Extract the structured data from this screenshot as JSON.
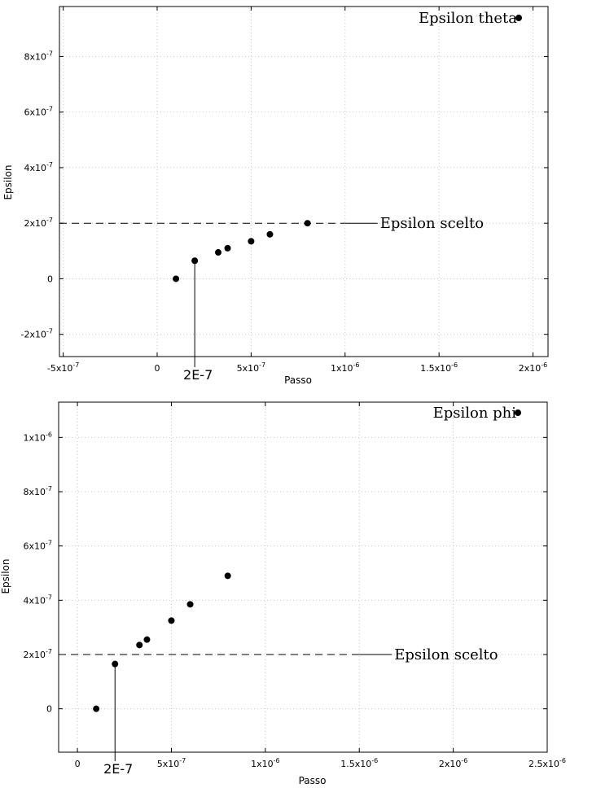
{
  "chart_data": [
    {
      "type": "scatter",
      "xlabel": "Passo",
      "ylabel": "Epsilon",
      "xlim": [
        -5.2e-07,
        2.08e-06
      ],
      "ylim": [
        -2.8e-07,
        9.8e-07
      ],
      "x_ticks": [
        {
          "v": -5e-07,
          "label": "-5x10",
          "exp": "-7"
        },
        {
          "v": 0,
          "label": "0",
          "exp": ""
        },
        {
          "v": 5e-07,
          "label": "5x10",
          "exp": "-7"
        },
        {
          "v": 1e-06,
          "label": "1x10",
          "exp": "-6"
        },
        {
          "v": 1.5e-06,
          "label": "1.5x10",
          "exp": "-6"
        },
        {
          "v": 2e-06,
          "label": "2x10",
          "exp": "-6"
        }
      ],
      "y_ticks": [
        {
          "v": -2e-07,
          "label": "-2x10",
          "exp": "-7"
        },
        {
          "v": 0,
          "label": "0",
          "exp": ""
        },
        {
          "v": 2e-07,
          "label": "2x10",
          "exp": "-7"
        },
        {
          "v": 4e-07,
          "label": "4x10",
          "exp": "-7"
        },
        {
          "v": 6e-07,
          "label": "6x10",
          "exp": "-7"
        },
        {
          "v": 8e-07,
          "label": "8x10",
          "exp": "-7"
        }
      ],
      "series": [
        {
          "name": "Epsilon theta",
          "points": [
            {
              "x": 1e-07,
              "y": 0
            },
            {
              "x": 2e-07,
              "y": 6.5e-08
            },
            {
              "x": 3.25e-07,
              "y": 9.5e-08
            },
            {
              "x": 3.75e-07,
              "y": 1.1e-07
            },
            {
              "x": 5e-07,
              "y": 1.35e-07
            },
            {
              "x": 6e-07,
              "y": 1.6e-07
            },
            {
              "x": 8e-07,
              "y": 2e-07
            }
          ]
        }
      ],
      "reference_line": {
        "y": 2e-07,
        "x_end": 1e-06,
        "label": "Epsilon scelto"
      },
      "x_callout": {
        "x": 2e-07,
        "label": "2E-7"
      },
      "legend_position": "top-right",
      "grid": true
    },
    {
      "type": "scatter",
      "xlabel": "Passo",
      "ylabel": "Epsilon",
      "xlim": [
        -1e-07,
        2.5e-06
      ],
      "ylim": [
        -1.6e-07,
        1.13e-06
      ],
      "x_ticks": [
        {
          "v": 0,
          "label": "0",
          "exp": ""
        },
        {
          "v": 5e-07,
          "label": "5x10",
          "exp": "-7"
        },
        {
          "v": 1e-06,
          "label": "1x10",
          "exp": "-6"
        },
        {
          "v": 1.5e-06,
          "label": "1.5x10",
          "exp": "-6"
        },
        {
          "v": 2e-06,
          "label": "2x10",
          "exp": "-6"
        },
        {
          "v": 2.5e-06,
          "label": "2.5x10",
          "exp": "-6"
        }
      ],
      "y_ticks": [
        {
          "v": 0,
          "label": "0",
          "exp": ""
        },
        {
          "v": 2e-07,
          "label": "2x10",
          "exp": "-7"
        },
        {
          "v": 4e-07,
          "label": "4x10",
          "exp": "-7"
        },
        {
          "v": 6e-07,
          "label": "6x10",
          "exp": "-7"
        },
        {
          "v": 8e-07,
          "label": "8x10",
          "exp": "-7"
        },
        {
          "v": 1e-06,
          "label": "1x10",
          "exp": "-6"
        }
      ],
      "series": [
        {
          "name": "Epsilon phi",
          "points": [
            {
              "x": 1e-07,
              "y": 0
            },
            {
              "x": 2e-07,
              "y": 1.65e-07
            },
            {
              "x": 3.3e-07,
              "y": 2.35e-07
            },
            {
              "x": 3.7e-07,
              "y": 2.55e-07
            },
            {
              "x": 5e-07,
              "y": 3.25e-07
            },
            {
              "x": 6e-07,
              "y": 3.85e-07
            },
            {
              "x": 8e-07,
              "y": 4.9e-07
            }
          ]
        }
      ],
      "reference_line": {
        "y": 2e-07,
        "x_end": 1.5e-06,
        "label": "Epsilon scelto"
      },
      "x_callout": {
        "x": 2e-07,
        "label": "2E-7"
      },
      "legend_position": "top-right",
      "grid": true
    }
  ]
}
